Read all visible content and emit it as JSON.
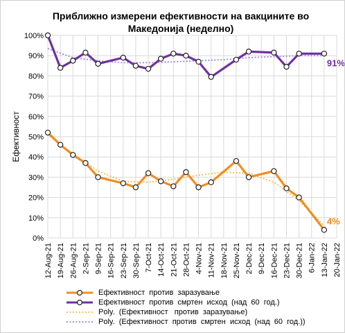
{
  "chart_data": {
    "type": "line",
    "title_line1": "Приближно измерени ефективности на вакцините во",
    "title_line2": "Македонија (неделно)",
    "ylabel": "Ефективност",
    "xlabel": "",
    "ylim": [
      0,
      100
    ],
    "yticks": [
      "0%",
      "10%",
      "20%",
      "30%",
      "40%",
      "50%",
      "60%",
      "70%",
      "80%",
      "90%",
      "100%"
    ],
    "grid": true,
    "legend_position": "bottom",
    "x": [
      "12-Aug-21",
      "19-Aug-21",
      "26-Aug-21",
      "2-Sep-21",
      "9-Sep-21",
      "16-Sep-21",
      "23-Sep-21",
      "30-Sep-21",
      "7-Oct-21",
      "14-Oct-21",
      "21-Oct-21",
      "28-Oct-21",
      "4-Nov-21",
      "11-Nov-21",
      "18-Nov-21",
      "25-Nov-21",
      "2-Dec-21",
      "9-Dec-21",
      "16-Dec-21",
      "23-Dec-21",
      "30-Dec-21",
      "6-Jan-22",
      "13-Jan-22",
      "20-Jan-22"
    ],
    "series": [
      {
        "name": "Ефективност  против  заразување",
        "color": "#f28c1e",
        "points": [
          [
            "12-Aug-21",
            52
          ],
          [
            "19-Aug-21",
            46
          ],
          [
            "26-Aug-21",
            41
          ],
          [
            "2-Sep-21",
            37
          ],
          [
            "9-Sep-21",
            30
          ],
          [
            "23-Sep-21",
            27
          ],
          [
            "30-Sep-21",
            25
          ],
          [
            "7-Oct-21",
            32
          ],
          [
            "14-Oct-21",
            28
          ],
          [
            "21-Oct-21",
            25.5
          ],
          [
            "28-Oct-21",
            32.5
          ],
          [
            "4-Nov-21",
            25
          ],
          [
            "11-Nov-21",
            27.5
          ],
          [
            "25-Nov-21",
            38
          ],
          [
            "2-Dec-21",
            30
          ],
          [
            "16-Dec-21",
            33
          ],
          [
            "23-Dec-21",
            24.5
          ],
          [
            "30-Dec-21",
            20
          ],
          [
            "13-Jan-22",
            4
          ]
        ],
        "end_label": "4%"
      },
      {
        "name": "Ефективност  против  смртен  исход  (над  60  год.)",
        "color": "#7030a0",
        "points": [
          [
            "12-Aug-21",
            100
          ],
          [
            "19-Aug-21",
            84
          ],
          [
            "26-Aug-21",
            87.5
          ],
          [
            "2-Sep-21",
            91.5
          ],
          [
            "9-Sep-21",
            86
          ],
          [
            "23-Sep-21",
            89
          ],
          [
            "30-Sep-21",
            85
          ],
          [
            "7-Oct-21",
            83.5
          ],
          [
            "14-Oct-21",
            88.5
          ],
          [
            "21-Oct-21",
            91
          ],
          [
            "28-Oct-21",
            90
          ],
          [
            "4-Nov-21",
            87
          ],
          [
            "11-Nov-21",
            79.5
          ],
          [
            "25-Nov-21",
            88
          ],
          [
            "2-Dec-21",
            92
          ],
          [
            "16-Dec-21",
            91.5
          ],
          [
            "23-Dec-21",
            84.5
          ],
          [
            "30-Dec-21",
            91
          ],
          [
            "13-Jan-22",
            91
          ]
        ],
        "end_label": "91%"
      },
      {
        "name": "Poly.  (Ефективност   против  заразување)",
        "color": "#f5b942",
        "style": "dotted",
        "points": [
          [
            "12-Aug-21",
            51
          ],
          [
            "26-Aug-21",
            41.5
          ],
          [
            "9-Sep-21",
            33
          ],
          [
            "23-Sep-21",
            28
          ],
          [
            "7-Oct-21",
            27.5
          ],
          [
            "21-Oct-21",
            29
          ],
          [
            "4-Nov-21",
            31
          ],
          [
            "18-Nov-21",
            32.5
          ],
          [
            "2-Dec-21",
            32
          ],
          [
            "16-Dec-21",
            27.5
          ],
          [
            "30-Dec-21",
            18.5
          ],
          [
            "13-Jan-22",
            6
          ]
        ]
      },
      {
        "name": "Poly.  (Ефективност  против  смртен  исход  (над  60  год.))",
        "color": "#9b7fe0",
        "style": "dotted",
        "points": [
          [
            "12-Aug-21",
            93.5
          ],
          [
            "26-Aug-21",
            89
          ],
          [
            "9-Sep-21",
            87.5
          ],
          [
            "23-Sep-21",
            86.5
          ],
          [
            "7-Oct-21",
            86.5
          ],
          [
            "21-Oct-21",
            87
          ],
          [
            "4-Nov-21",
            87.5
          ],
          [
            "18-Nov-21",
            88
          ],
          [
            "2-Dec-21",
            89
          ],
          [
            "16-Dec-21",
            89.5
          ],
          [
            "30-Dec-21",
            90
          ],
          [
            "13-Jan-22",
            90
          ]
        ]
      }
    ]
  }
}
